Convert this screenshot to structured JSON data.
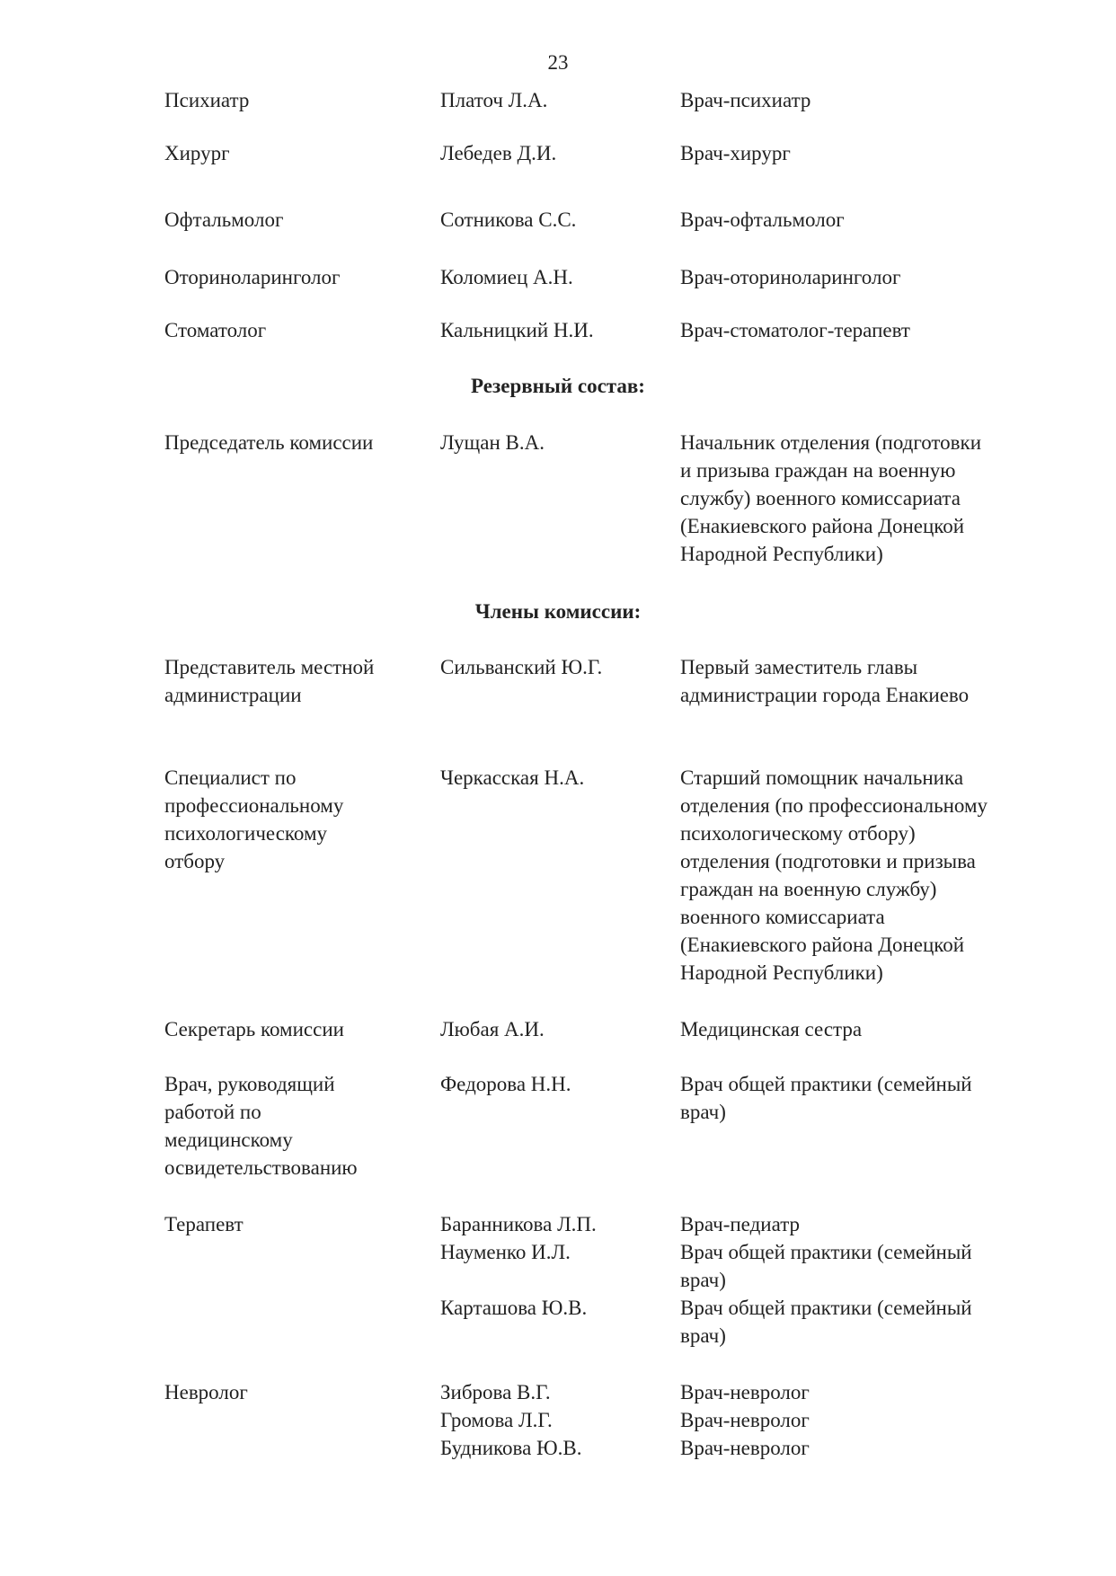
{
  "page_number": "23",
  "sections": [
    {
      "heading": "",
      "rows": [
        {
          "label": [
            "Психиатр"
          ],
          "people": [
            {
              "name": "Платоч Л.А.",
              "position": [
                "Врач-психиатр"
              ]
            }
          ]
        },
        {
          "label": [
            "Хирург"
          ],
          "people": [
            {
              "name": "Лебедев Д.И.",
              "position": [
                "Врач-хирург"
              ]
            }
          ]
        },
        {
          "label": [
            "Офтальмолог"
          ],
          "people": [
            {
              "name": "Сотникова С.С.",
              "position": [
                "Врач-офтальмолог"
              ]
            }
          ]
        },
        {
          "label": [
            "Оториноларинголог"
          ],
          "people": [
            {
              "name": "Коломиец А.Н.",
              "position": [
                "Врач-оториноларинголог"
              ]
            }
          ]
        },
        {
          "label": [
            "Стоматолог"
          ],
          "people": [
            {
              "name": "Кальницкий Н.И.",
              "position": [
                "Врач-стоматолог-терапевт"
              ]
            }
          ]
        }
      ]
    },
    {
      "heading": "Резервный состав:",
      "rows": [
        {
          "label": [
            "Председатель комиссии"
          ],
          "people": [
            {
              "name": "Лущан В.А.",
              "position": [
                "Начальник отделения (подготовки",
                "и призыва граждан на военную",
                "службу) военного комиссариата",
                "(Енакиевского района Донецкой",
                "Народной Республики)"
              ]
            }
          ]
        }
      ]
    },
    {
      "heading": "Члены комиссии:",
      "rows": [
        {
          "label": [
            "Представитель местной",
            "администрации"
          ],
          "people": [
            {
              "name": "Сильванский Ю.Г.",
              "position": [
                "Первый заместитель главы",
                "администрации города Енакиево"
              ]
            }
          ]
        },
        {
          "label": [
            "Специалист по",
            "профессиональному",
            "психологическому",
            "отбору"
          ],
          "people": [
            {
              "name": "Черкасская Н.А.",
              "position": [
                "Старший помощник начальника",
                "отделения (по профессиональному",
                "психологическому отбору)",
                "отделения (подготовки и призыва",
                "граждан на военную службу)",
                "военного комиссариата",
                "(Енакиевского района Донецкой",
                "Народной Республики)"
              ]
            }
          ]
        },
        {
          "label": [
            "Секретарь комиссии"
          ],
          "people": [
            {
              "name": "Любая А.И.",
              "position": [
                "Медицинская сестра"
              ]
            }
          ]
        },
        {
          "label": [
            "Врач, руководящий",
            "работой по",
            "медицинскому",
            "освидетельствованию"
          ],
          "people": [
            {
              "name": "Федорова Н.Н.",
              "position": [
                "Врач общей практики (семейный",
                "врач)"
              ]
            }
          ]
        },
        {
          "label": [
            "Терапевт"
          ],
          "people": [
            {
              "name": "Баранникова Л.П.",
              "position": [
                "Врач-педиатр"
              ]
            },
            {
              "name": "Науменко И.Л.",
              "position": [
                "Врач общей практики (семейный",
                "врач)"
              ]
            },
            {
              "name": "Карташова Ю.В.",
              "position": [
                "Врач общей практики (семейный",
                "врач)"
              ]
            }
          ]
        },
        {
          "label": [
            "Невролог"
          ],
          "people": [
            {
              "name": "Зиброва В.Г.",
              "position": [
                "Врач-невролог"
              ]
            },
            {
              "name": "Громова Л.Г.",
              "position": [
                "Врач-невролог"
              ]
            },
            {
              "name": "Будникова Ю.В.",
              "position": [
                "Врач-невролог"
              ]
            }
          ]
        }
      ]
    }
  ]
}
